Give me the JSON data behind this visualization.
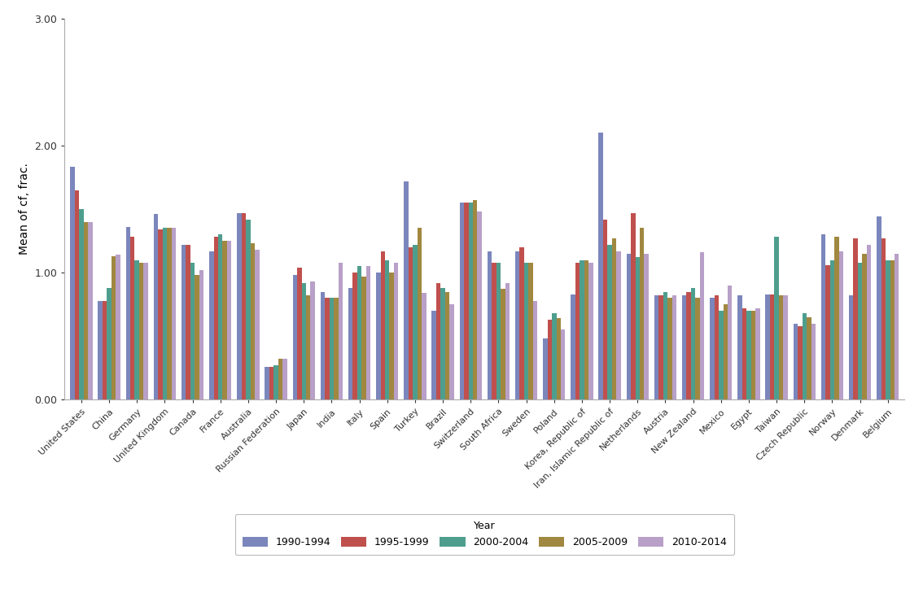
{
  "categories": [
    "United States",
    "China",
    "Germany",
    "United Kingdom",
    "Canada",
    "France",
    "Australia",
    "Russian Federation",
    "Japan",
    "India",
    "Italy",
    "Spain",
    "Turkey",
    "Brazil",
    "Switzerland",
    "South Africa",
    "Sweden",
    "Poland",
    "Korea, Republic of",
    "Iran, Islamic Republic of",
    "Netherlands",
    "Austria",
    "New Zealand",
    "Mexico",
    "Egypt",
    "Taiwan",
    "Czech Republic",
    "Norway",
    "Denmark",
    "Belgium"
  ],
  "series": {
    "1990-1994": [
      1.83,
      0.78,
      1.36,
      1.46,
      1.22,
      1.17,
      1.47,
      0.26,
      0.98,
      0.85,
      0.88,
      1.0,
      1.72,
      0.7,
      1.55,
      1.17,
      1.17,
      0.48,
      0.83,
      2.1,
      1.15,
      0.82,
      0.82,
      0.8,
      0.82,
      0.83,
      0.6,
      1.3,
      0.82,
      1.44
    ],
    "1995-1999": [
      1.65,
      0.78,
      1.28,
      1.34,
      1.22,
      1.28,
      1.47,
      0.26,
      1.04,
      0.8,
      1.0,
      1.17,
      1.2,
      0.92,
      1.55,
      1.08,
      1.2,
      0.63,
      1.08,
      1.42,
      1.47,
      0.82,
      0.85,
      0.82,
      0.72,
      0.83,
      0.58,
      1.06,
      1.27,
      1.27
    ],
    "2000-2004": [
      1.5,
      0.88,
      1.1,
      1.35,
      1.08,
      1.3,
      1.42,
      0.27,
      0.92,
      0.8,
      1.05,
      1.1,
      1.22,
      0.88,
      1.55,
      1.08,
      1.08,
      0.68,
      1.1,
      1.22,
      1.12,
      0.85,
      0.88,
      0.7,
      0.7,
      1.28,
      0.68,
      1.1,
      1.08,
      1.1
    ],
    "2005-2009": [
      1.4,
      1.13,
      1.08,
      1.35,
      0.98,
      1.25,
      1.23,
      0.32,
      0.82,
      0.8,
      0.97,
      1.0,
      1.35,
      0.85,
      1.57,
      0.87,
      1.08,
      0.64,
      1.1,
      1.27,
      1.35,
      0.8,
      0.8,
      0.75,
      0.7,
      0.82,
      0.65,
      1.28,
      1.15,
      1.1
    ],
    "2010-2014": [
      1.4,
      1.14,
      1.08,
      1.35,
      1.02,
      1.25,
      1.18,
      0.32,
      0.93,
      1.08,
      1.05,
      1.08,
      0.84,
      0.75,
      1.48,
      0.92,
      0.78,
      0.55,
      1.08,
      1.17,
      1.15,
      0.82,
      1.16,
      0.9,
      0.72,
      0.82,
      0.6,
      1.17,
      1.22,
      1.15
    ]
  },
  "series_colors": {
    "1990-1994": "#7b86bc",
    "1995-1999": "#c0504d",
    "2000-2004": "#4e9e8e",
    "2005-2009": "#a08840",
    "2010-2014": "#b8a0c8"
  },
  "series_order": [
    "1990-1994",
    "1995-1999",
    "2000-2004",
    "2005-2009",
    "2010-2014"
  ],
  "ylabel": "Mean of cf, frac.",
  "ylim": [
    0.0,
    3.0
  ],
  "yticks": [
    0.0,
    1.0,
    2.0,
    3.0
  ],
  "legend_title": "Year",
  "background_color": "#ffffff",
  "bar_width": 0.16
}
